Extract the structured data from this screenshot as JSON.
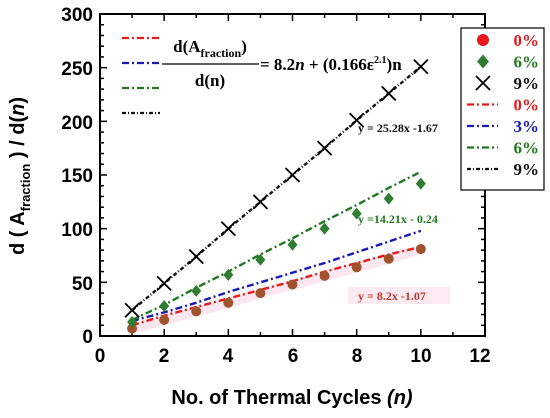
{
  "chart_data": {
    "type": "scatter",
    "xlabel": "No. of Thermal Cycles",
    "xlabel_var": "(n)",
    "ylabel": {
      "prefix": "d ( A",
      "subscript": "fraction",
      "suffix": " ) / d(",
      "var": "n",
      "close": ")"
    },
    "xlim": [
      0,
      12
    ],
    "ylim": [
      0,
      300
    ],
    "xticks": [
      "0",
      "2",
      "4",
      "6",
      "8",
      "10",
      "12"
    ],
    "yticks": [
      "0",
      "50",
      "100",
      "150",
      "200",
      "250",
      "300"
    ],
    "formula": {
      "numerator": "d(A",
      "numerator_sub": "fraction",
      "numerator_close": ")",
      "denominator": "d(n)",
      "rhs_pre": "= 8.2",
      "rhs_n": "n",
      "rhs_mid": " + (0.166ε",
      "rhs_sup": "2.1",
      "rhs_post": ")n"
    },
    "colors": {
      "red": "#e8191a",
      "blue": "#1a1ab8",
      "green": "#1f7a1f",
      "black": "#111111",
      "brown": "#8b4513"
    },
    "series": [
      {
        "name": "0%",
        "kind": "marker",
        "marker": "circle",
        "color": "#a0522d",
        "x": [
          1,
          2,
          3,
          4,
          5,
          6,
          7,
          8,
          9,
          10
        ],
        "y": [
          7,
          15,
          23,
          31,
          40,
          48,
          56,
          64,
          72,
          81
        ]
      },
      {
        "name": "6%",
        "kind": "marker",
        "marker": "diamond",
        "color": "#2e7d32",
        "x": [
          1,
          2,
          3,
          4,
          5,
          6,
          7,
          8,
          9,
          10
        ],
        "y": [
          13,
          28,
          42,
          57,
          71,
          85,
          100,
          114,
          128,
          142
        ]
      },
      {
        "name": "9%",
        "kind": "marker",
        "marker": "x",
        "color": "#000000",
        "x": [
          1,
          2,
          3,
          4,
          5,
          6,
          7,
          8,
          9,
          10
        ],
        "y": [
          24,
          49,
          74,
          100,
          125,
          150,
          175,
          201,
          226,
          251
        ]
      },
      {
        "name": "0%",
        "kind": "line",
        "dash": "7,3,2,3",
        "color": "#e8191a",
        "x": [
          1,
          2,
          3,
          4,
          5,
          6,
          7,
          8,
          9,
          10
        ],
        "y": [
          10,
          19,
          27,
          35,
          43,
          51,
          60,
          68,
          76,
          83
        ]
      },
      {
        "name": "3%",
        "kind": "line",
        "dash": "7,3,2,3",
        "color": "#1a1ab8",
        "x": [
          1,
          2,
          3,
          4,
          5,
          6,
          7,
          8,
          9,
          10
        ],
        "y": [
          14,
          22,
          31,
          41,
          50,
          59,
          68,
          78,
          88,
          98
        ]
      },
      {
        "name": "6%",
        "kind": "line",
        "dash": "7,3,2,3",
        "color": "#1f7a1f",
        "x": [
          1,
          2,
          3,
          4,
          5,
          6,
          7,
          8,
          9,
          10
        ],
        "y": [
          15,
          29,
          45,
          60,
          76,
          91,
          107,
          122,
          138,
          153
        ]
      },
      {
        "name": "9%",
        "kind": "line",
        "dash": "4,2,1,2",
        "color": "#111111",
        "x": [
          1,
          2,
          3,
          4,
          5,
          6,
          7,
          8,
          9,
          10
        ],
        "y": [
          24,
          49,
          74,
          100,
          125,
          150,
          175,
          201,
          226,
          251
        ]
      }
    ],
    "annotations": [
      {
        "text": "y = 25.28x -1.67",
        "color": "#111111"
      },
      {
        "text": "y =14.21x - 0.24",
        "color": "#1f7a1f"
      },
      {
        "text": "y = 8.2x -1.07",
        "color": "#c0392b"
      }
    ],
    "legend_position": "right"
  }
}
